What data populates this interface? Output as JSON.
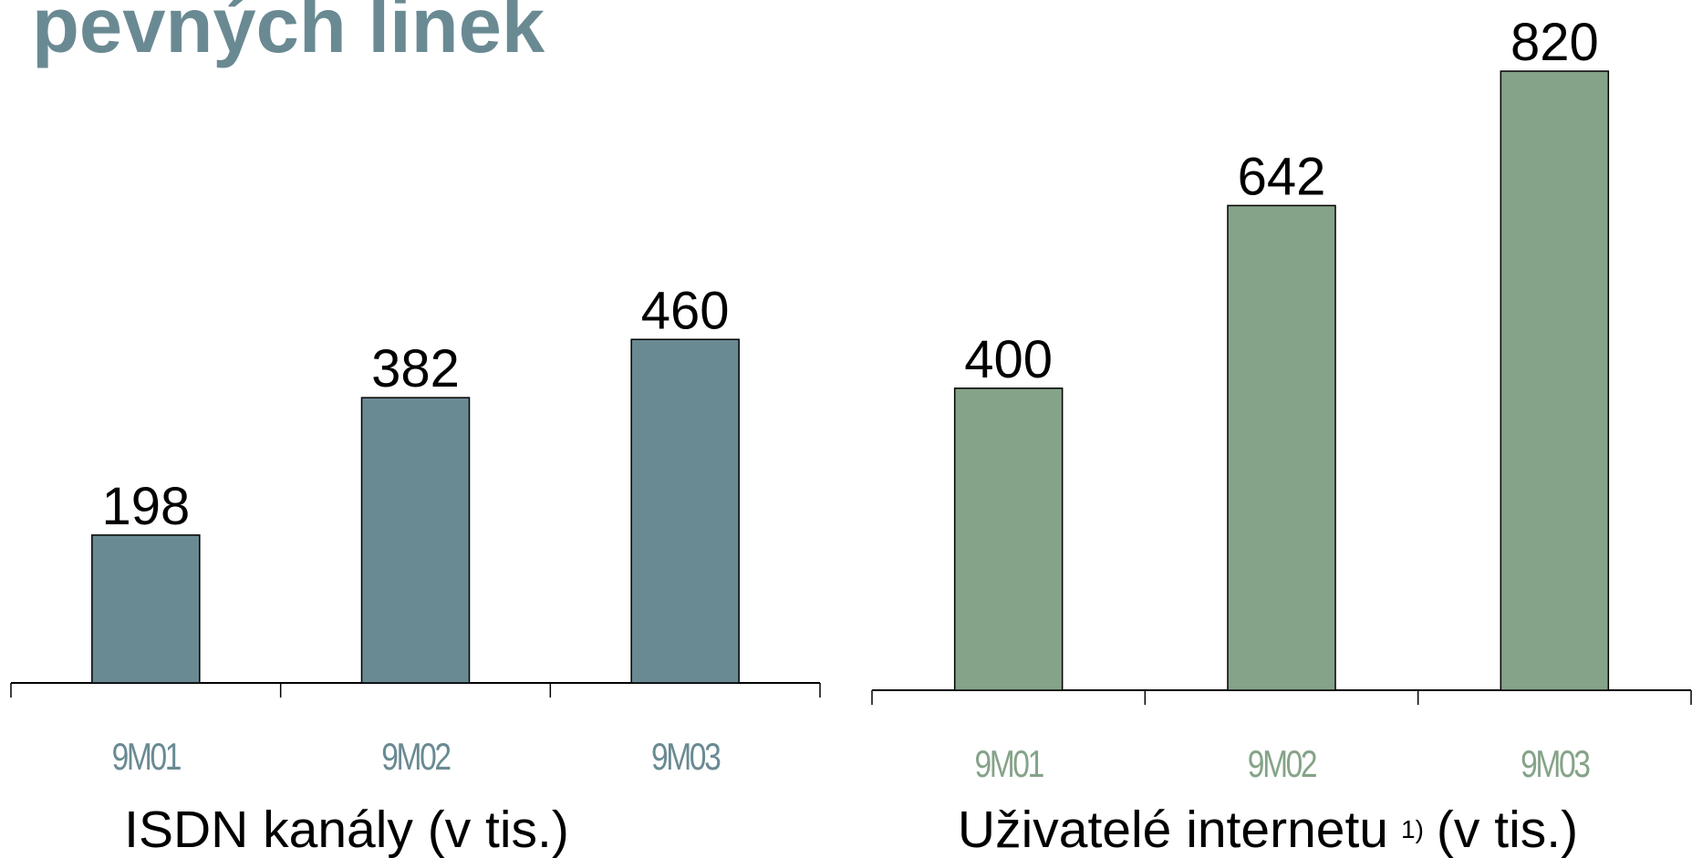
{
  "page_title": "pevných linek",
  "chart_data": [
    {
      "type": "bar",
      "title": "ISDN kanály (v tis.)",
      "color": "#6a8a93",
      "tick_color": "#6a8a93",
      "categories": [
        "9M01",
        "9M02",
        "9M03"
      ],
      "values": [
        198,
        382,
        460
      ]
    },
    {
      "type": "bar",
      "title": "Uživatelé internetu",
      "footnote": "1)",
      "unit": "(v tis.)",
      "color": "#85a388",
      "tick_color": "#85a388",
      "categories": [
        "9M01",
        "9M02",
        "9M03"
      ],
      "values": [
        400,
        642,
        820
      ]
    }
  ]
}
